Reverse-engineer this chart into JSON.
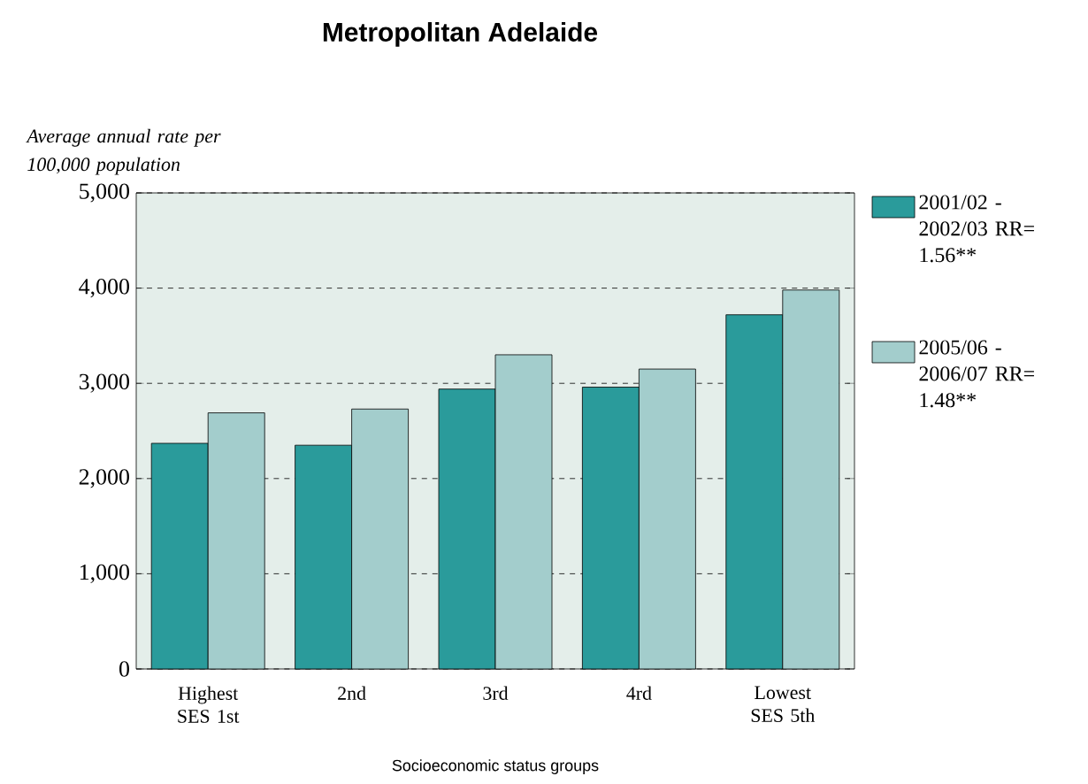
{
  "chart_data": {
    "type": "bar",
    "title": "Metropolitan Adelaide",
    "ylabel": "Average annual rate per 100,000 population",
    "xlabel": "Socioeconomic status groups",
    "categories": [
      "Highest SES 1st",
      "2nd",
      "3rd",
      "4rd",
      "Lowest SES 5th"
    ],
    "series": [
      {
        "name": "2001/02 - 2002/03 RR= 1.56**",
        "color": "#2a9b9b",
        "values": [
          2370,
          2350,
          2940,
          2960,
          3720
        ]
      },
      {
        "name": "2005/06 - 2006/07 RR= 1.48**",
        "color": "#a3cdcc",
        "values": [
          2690,
          2730,
          3300,
          3150,
          3980
        ]
      }
    ],
    "ylim": [
      0,
      5000
    ],
    "yticks": [
      0,
      {
        "value": 1000,
        "label": "1,000"
      },
      {
        "value": 2000,
        "label": "2,000"
      },
      {
        "value": 3000,
        "label": "3,000"
      },
      {
        "value": 4000,
        "label": "4,000"
      },
      {
        "value": 5000,
        "label": "5,000"
      }
    ],
    "grid": "y",
    "line_style": "dashed",
    "legend": "right"
  }
}
